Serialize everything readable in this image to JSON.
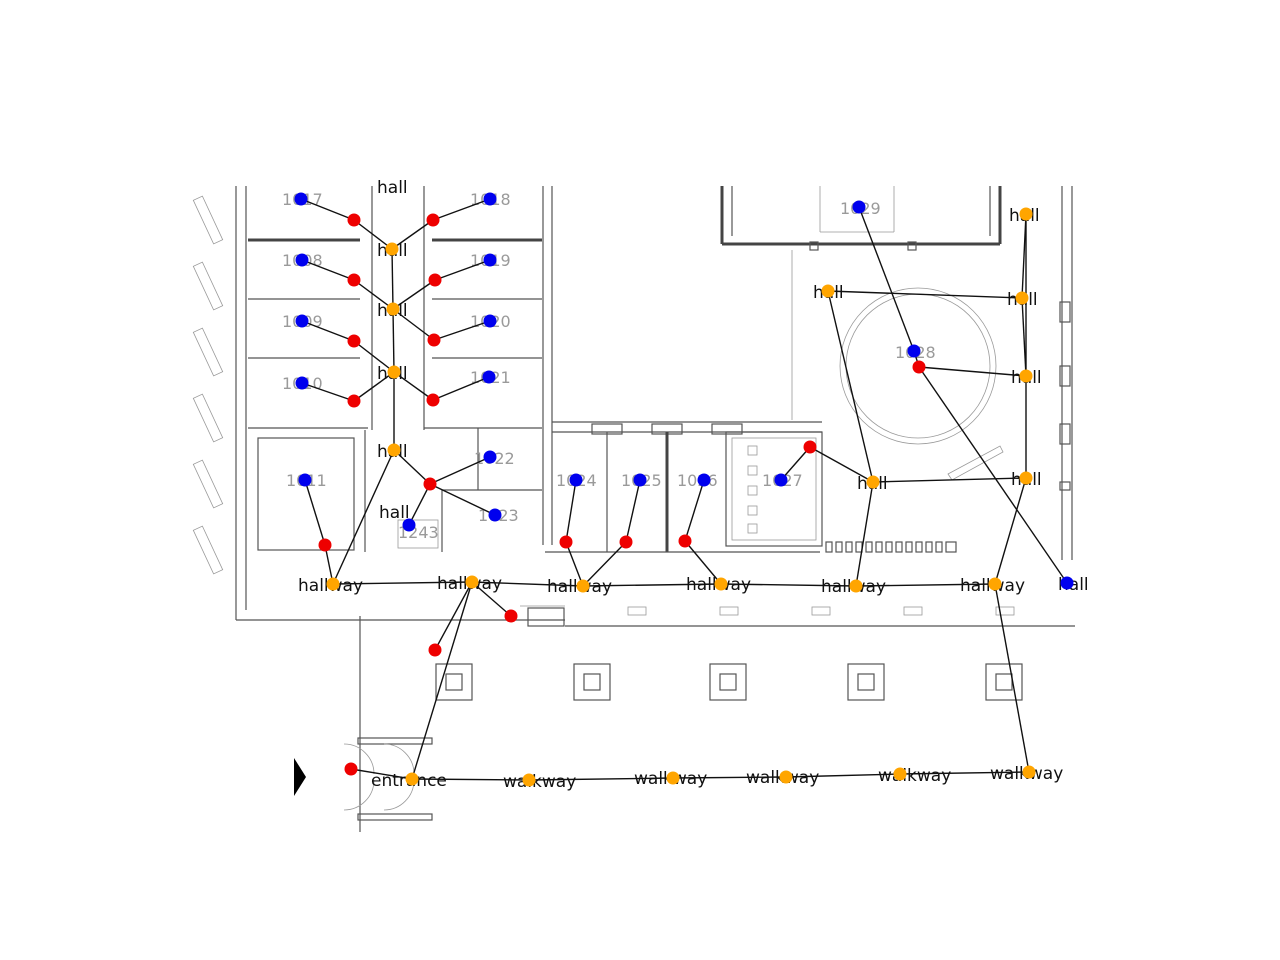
{
  "colors": {
    "room": "#0000ee",
    "door": "#ee0000",
    "hall": "#ffa500",
    "edge": "#000000"
  },
  "room_numbers": [
    "1017",
    "1018",
    "1008",
    "1019",
    "1009",
    "1020",
    "1010",
    "1021",
    "1011",
    "1022",
    "1243",
    "1023",
    "1024",
    "1025",
    "1026",
    "1027",
    "1029",
    "1028"
  ],
  "node_labels": [
    "hall",
    "hall",
    "hall",
    "hall",
    "hall",
    "hall",
    "hall",
    "hall",
    "hall",
    "hall",
    "hall",
    "hall",
    "hall",
    "hallway",
    "hallway",
    "hallway",
    "hallway",
    "hallway",
    "hallway",
    "entrance",
    "walkway",
    "walkway",
    "walkway",
    "walkway",
    "walkway"
  ],
  "nodes": {
    "blue": [
      "r1017",
      "r1018",
      "r1008",
      "r1019",
      "r1009",
      "r1020",
      "r1010",
      "r1021",
      "r1011",
      "r1022",
      "r1243",
      "r1023",
      "r1024",
      "r1025",
      "r1026",
      "r1027",
      "r1029",
      "r1028",
      "rEdge"
    ],
    "red": [
      "d1",
      "d2",
      "d3",
      "d4",
      "d5",
      "d6",
      "d7",
      "d8",
      "d9",
      "d10",
      "d11",
      "d12",
      "d13",
      "d14",
      "d15",
      "d16",
      "d17",
      "d18",
      "d19"
    ],
    "orange": [
      "h1",
      "h2",
      "h3",
      "h4",
      "h5",
      "h6",
      "h7",
      "h8",
      "h9",
      "h10",
      "h11",
      "h12",
      "h13",
      "w1",
      "w2",
      "w3",
      "w4",
      "w5",
      "w6",
      "e1",
      "k1",
      "k2",
      "k3",
      "k4",
      "k5",
      "k6"
    ]
  }
}
